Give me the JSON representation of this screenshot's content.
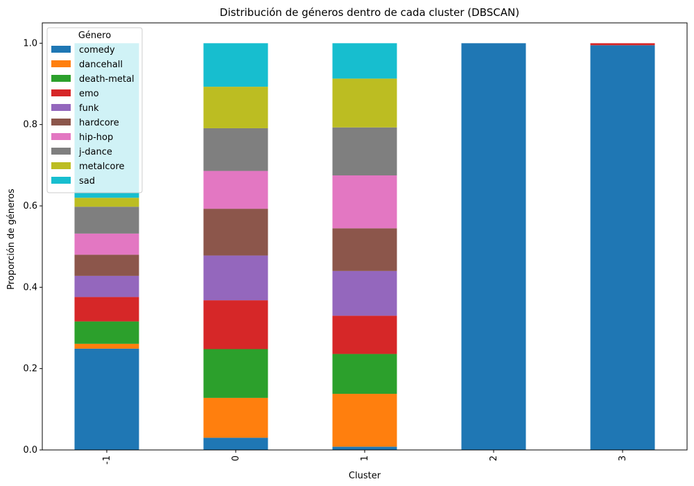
{
  "chart_data": {
    "type": "bar",
    "stacked": true,
    "title": "Distribución de géneros dentro de cada cluster (DBSCAN)",
    "xlabel": "Cluster",
    "ylabel": "Proporción de géneros",
    "ylim": [
      0,
      1.05
    ],
    "yticks": [
      "0.0",
      "0.2",
      "0.4",
      "0.6",
      "0.8",
      "1.0"
    ],
    "categories": [
      "-1",
      "0",
      "1",
      "2",
      "3"
    ],
    "legend": {
      "title": "Género",
      "placement": "top-left"
    },
    "series": [
      {
        "name": "comedy",
        "color": "#1f77b4",
        "values": [
          0.249,
          0.03,
          0.008,
          1.0,
          0.995
        ]
      },
      {
        "name": "dancehall",
        "color": "#ff7f0e",
        "values": [
          0.012,
          0.098,
          0.13,
          0.0,
          0.0
        ]
      },
      {
        "name": "death-metal",
        "color": "#2ca02c",
        "values": [
          0.055,
          0.12,
          0.098,
          0.0,
          0.0
        ]
      },
      {
        "name": "emo",
        "color": "#d62728",
        "values": [
          0.06,
          0.12,
          0.094,
          0.0,
          0.005
        ]
      },
      {
        "name": "funk",
        "color": "#9467bd",
        "values": [
          0.052,
          0.11,
          0.11,
          0.0,
          0.0
        ]
      },
      {
        "name": "hardcore",
        "color": "#8c564b",
        "values": [
          0.052,
          0.115,
          0.105,
          0.0,
          0.0
        ]
      },
      {
        "name": "hip-hop",
        "color": "#e377c2",
        "values": [
          0.052,
          0.093,
          0.13,
          0.0,
          0.0
        ]
      },
      {
        "name": "j-dance",
        "color": "#7f7f7f",
        "values": [
          0.066,
          0.105,
          0.118,
          0.0,
          0.0
        ]
      },
      {
        "name": "metalcore",
        "color": "#bcbd22",
        "values": [
          0.022,
          0.102,
          0.12,
          0.0,
          0.0
        ]
      },
      {
        "name": "sad",
        "color": "#17becf",
        "values": [
          0.38,
          0.107,
          0.087,
          0.0,
          0.0
        ]
      }
    ]
  }
}
